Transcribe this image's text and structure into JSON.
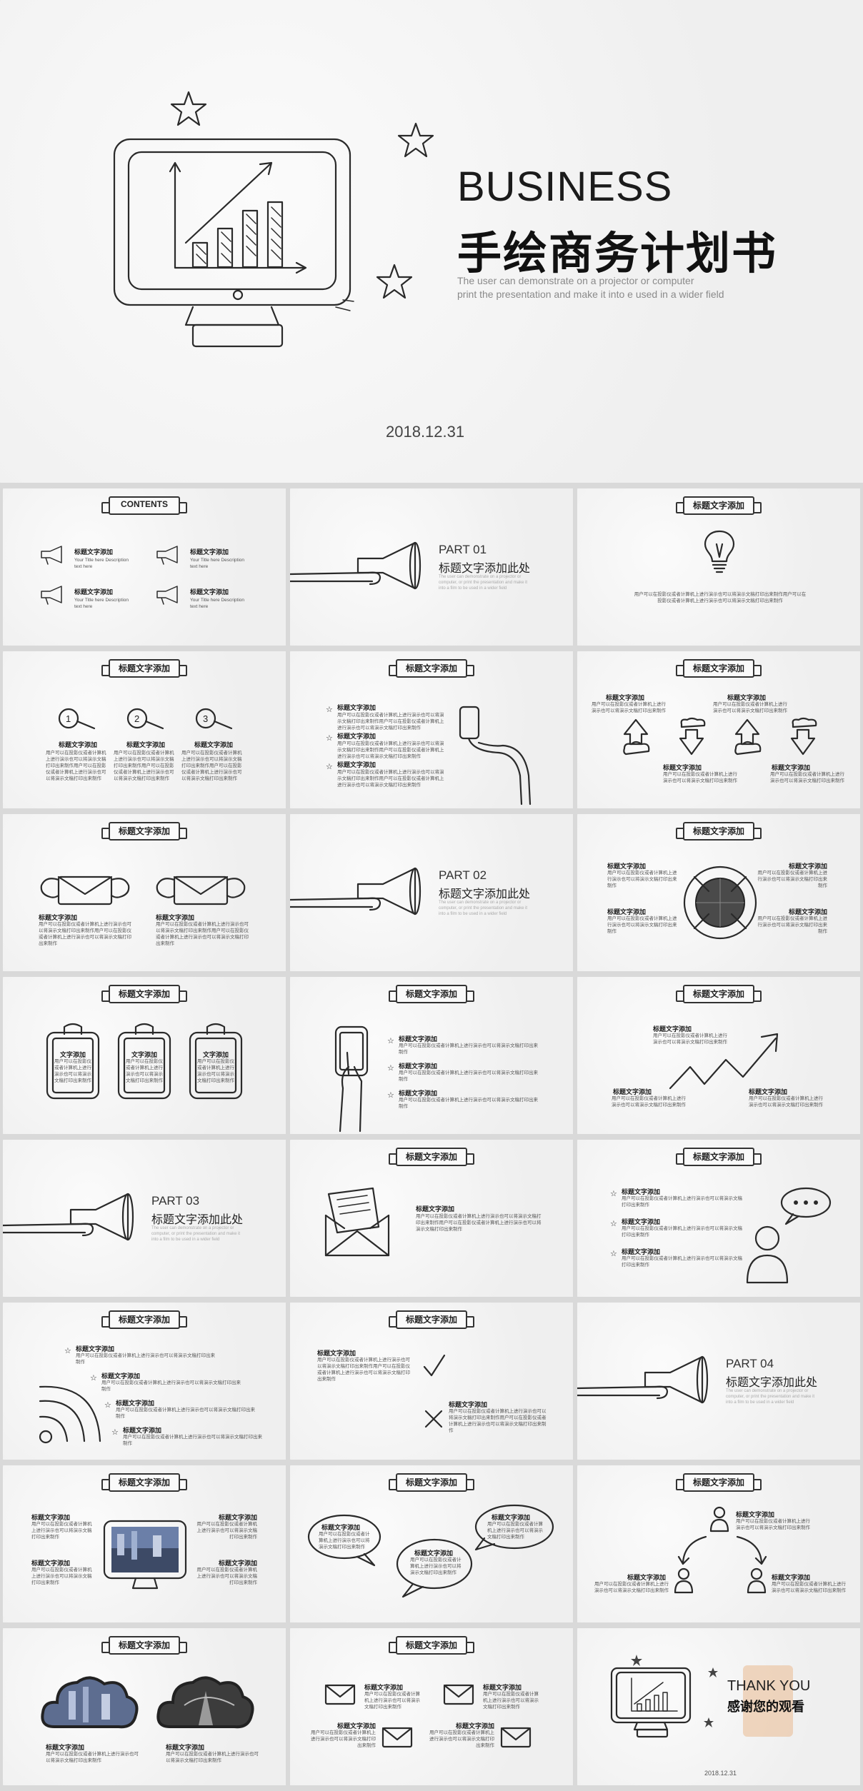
{
  "cover": {
    "title_en": "BUSINESS",
    "title_cn": "手绘商务计划书",
    "subtitle_line1": "The user can demonstrate on a projector or computer",
    "subtitle_line2": "print the presentation and make it into e used in a wider field",
    "date": "2018.12.31"
  },
  "common": {
    "slide_header": "标题文字添加",
    "item_title": "标题文字添加",
    "text_title": "文字添加",
    "body_short": "用户可以在投影仪或者计算机上进行演示也可以将演示文稿打印出来制作",
    "body_long": "用户可以在投影仪或者计算机上进行演示也可以将演示文稿打印出来制作用户可以在投影仪或者计算机上进行演示也可以将演示文稿打印出来制作",
    "part_sub_1": "The user can demonstrate on a projector or",
    "part_sub_2": "computer, or print the presentation and make it",
    "part_sub_3": "into a film to be used in a wider field"
  },
  "contents": {
    "header": "CONTENTS",
    "items": [
      {
        "title": "标题文字添加",
        "desc": "Your Title here Description text here"
      },
      {
        "title": "标题文字添加",
        "desc": "Your Title here Description text here"
      },
      {
        "title": "标题文字添加",
        "desc": "Your Title here Description text here"
      },
      {
        "title": "标题文字添加",
        "desc": "Your Title here Description text here"
      }
    ]
  },
  "parts": [
    {
      "number": "PART 01",
      "title": "标题文字添加此处"
    },
    {
      "number": "PART 02",
      "title": "标题文字添加此处"
    },
    {
      "number": "PART 03",
      "title": "标题文字添加此处"
    },
    {
      "number": "PART 04",
      "title": "标题文字添加此处"
    }
  ],
  "numbers": [
    "1",
    "2",
    "3"
  ],
  "closing": {
    "thank_en": "THANK YOU",
    "thank_cn": "感谢您的观看",
    "date": "2018.12.31"
  },
  "icons": [
    "star-icon",
    "monitor-chart-icon",
    "megaphone-icon",
    "lightbulb-icon",
    "magnifier-icon",
    "phone-hand-icon",
    "up-arrow-icon",
    "down-arrow-icon",
    "envelope-icon",
    "target-icon",
    "clipboard-icon",
    "zigzag-arrow-icon",
    "speech-bubble-icon",
    "person-icon",
    "wifi-icon",
    "check-icon",
    "cross-icon",
    "cloud-icon"
  ]
}
